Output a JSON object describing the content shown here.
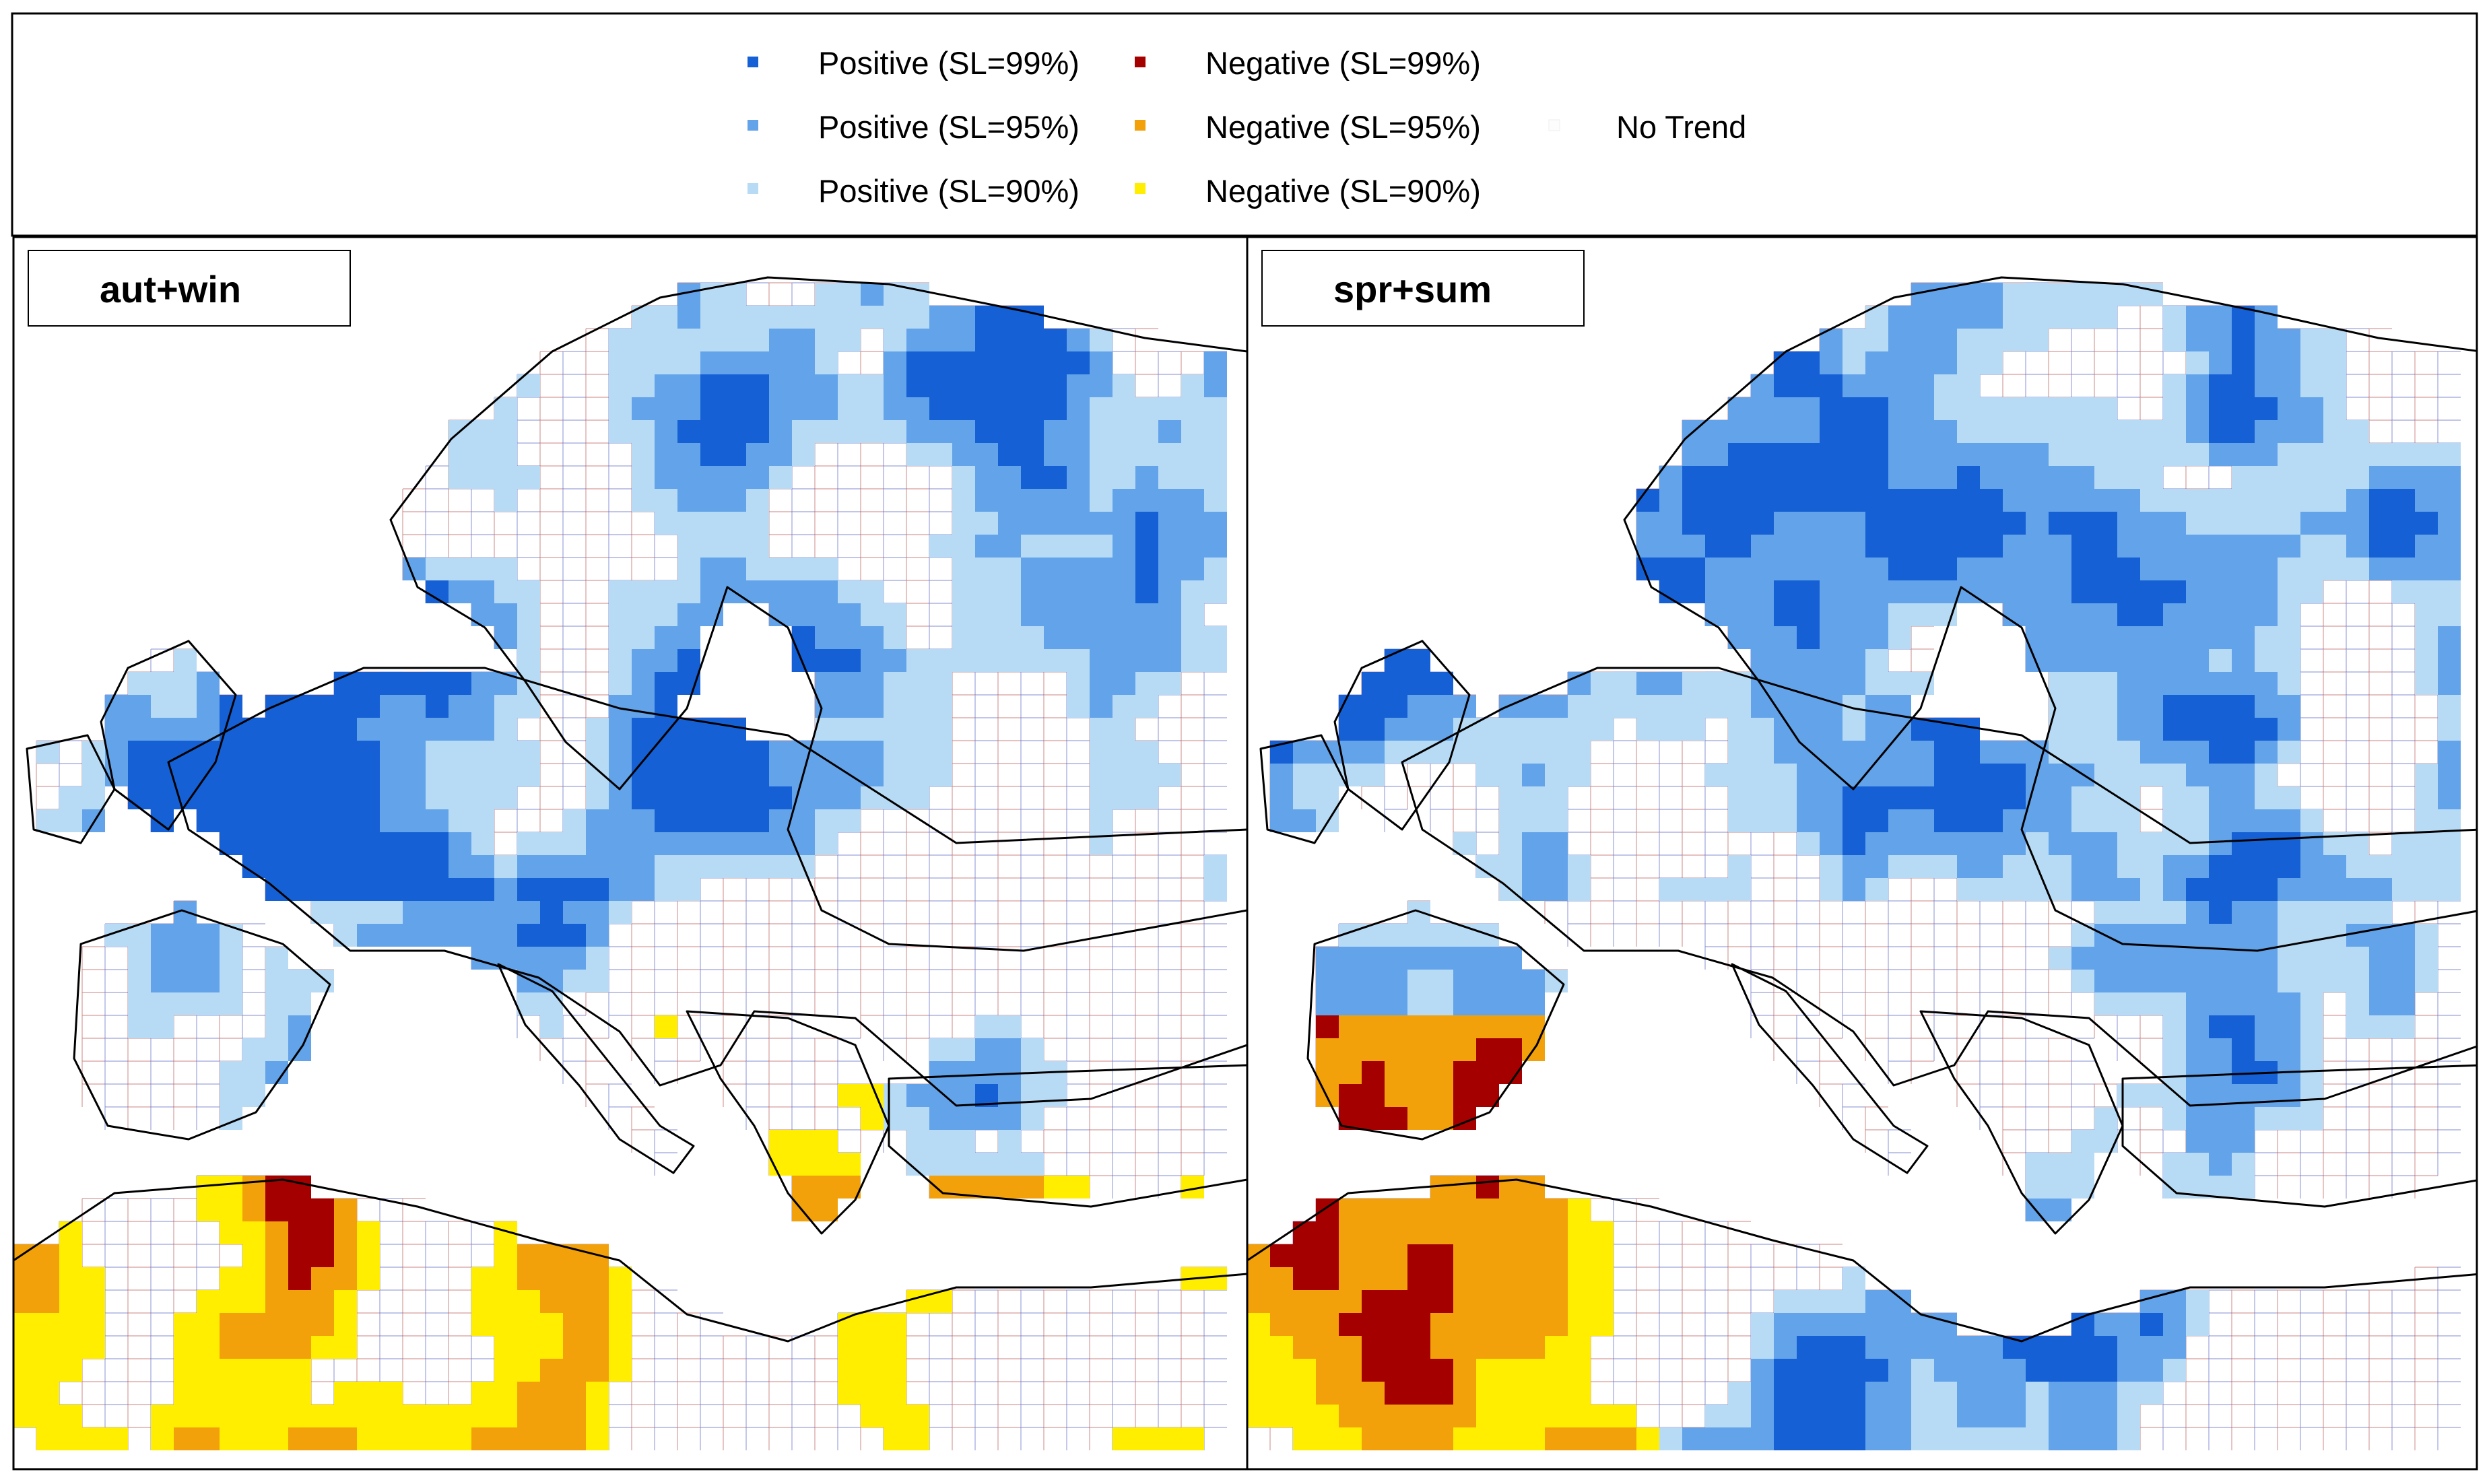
{
  "legend": {
    "items": [
      {
        "label": "Positive (SL=99%)",
        "color": "#1560d4"
      },
      {
        "label": "Negative (SL=99%)",
        "color": "#a50000"
      },
      {
        "label": "Positive (SL=95%)",
        "color": "#63a3ea"
      },
      {
        "label": "Negative (SL=95%)",
        "color": "#f2a10a"
      },
      {
        "label": "No Trend",
        "color": "#ffffff"
      },
      {
        "label": "Positive (SL=90%)",
        "color": "#b8dbf5"
      },
      {
        "label": "Negative (SL=90%)",
        "color": "#ffee00"
      }
    ]
  },
  "panels": [
    {
      "label": "aut+win"
    },
    {
      "label": "spr+sum"
    }
  ],
  "colors": {
    "frame": "#000000",
    "grid_red": "#b54a4a",
    "grid_blue": "#4a5ac0",
    "coastline": "#000000",
    "background": "#ffffff"
  }
}
